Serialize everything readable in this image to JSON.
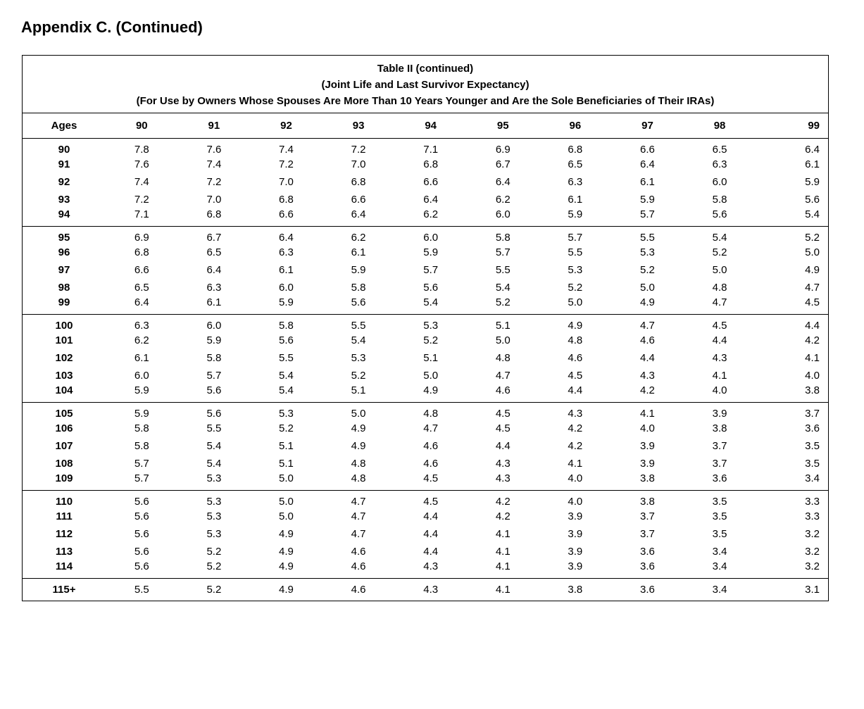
{
  "page_title": "Appendix C. (Continued)",
  "table": {
    "title_lines": [
      "Table II (continued)",
      "(Joint Life and Last Survivor Expectancy)",
      "(For Use by Owners Whose Spouses Are More Than 10 Years Younger and Are the Sole Beneficiaries of Their IRAs)"
    ],
    "columns": [
      "Ages",
      "90",
      "91",
      "92",
      "93",
      "94",
      "95",
      "96",
      "97",
      "98",
      "99"
    ],
    "row_groups": [
      {
        "rows": [
          {
            "age": "90",
            "values": [
              "7.8",
              "7.6",
              "7.4",
              "7.2",
              "7.1",
              "6.9",
              "6.8",
              "6.6",
              "6.5",
              "6.4"
            ]
          },
          {
            "age": "91",
            "values": [
              "7.6",
              "7.4",
              "7.2",
              "7.0",
              "6.8",
              "6.7",
              "6.5",
              "6.4",
              "6.3",
              "6.1"
            ]
          },
          {
            "age": "92",
            "values": [
              "7.4",
              "7.2",
              "7.0",
              "6.8",
              "6.6",
              "6.4",
              "6.3",
              "6.1",
              "6.0",
              "5.9"
            ]
          },
          {
            "age": "93",
            "values": [
              "7.2",
              "7.0",
              "6.8",
              "6.6",
              "6.4",
              "6.2",
              "6.1",
              "5.9",
              "5.8",
              "5.6"
            ]
          },
          {
            "age": "94",
            "values": [
              "7.1",
              "6.8",
              "6.6",
              "6.4",
              "6.2",
              "6.0",
              "5.9",
              "5.7",
              "5.6",
              "5.4"
            ]
          }
        ]
      },
      {
        "rows": [
          {
            "age": "95",
            "values": [
              "6.9",
              "6.7",
              "6.4",
              "6.2",
              "6.0",
              "5.8",
              "5.7",
              "5.5",
              "5.4",
              "5.2"
            ]
          },
          {
            "age": "96",
            "values": [
              "6.8",
              "6.5",
              "6.3",
              "6.1",
              "5.9",
              "5.7",
              "5.5",
              "5.3",
              "5.2",
              "5.0"
            ]
          },
          {
            "age": "97",
            "values": [
              "6.6",
              "6.4",
              "6.1",
              "5.9",
              "5.7",
              "5.5",
              "5.3",
              "5.2",
              "5.0",
              "4.9"
            ]
          },
          {
            "age": "98",
            "values": [
              "6.5",
              "6.3",
              "6.0",
              "5.8",
              "5.6",
              "5.4",
              "5.2",
              "5.0",
              "4.8",
              "4.7"
            ]
          },
          {
            "age": "99",
            "values": [
              "6.4",
              "6.1",
              "5.9",
              "5.6",
              "5.4",
              "5.2",
              "5.0",
              "4.9",
              "4.7",
              "4.5"
            ]
          }
        ]
      },
      {
        "rows": [
          {
            "age": "100",
            "values": [
              "6.3",
              "6.0",
              "5.8",
              "5.5",
              "5.3",
              "5.1",
              "4.9",
              "4.7",
              "4.5",
              "4.4"
            ]
          },
          {
            "age": "101",
            "values": [
              "6.2",
              "5.9",
              "5.6",
              "5.4",
              "5.2",
              "5.0",
              "4.8",
              "4.6",
              "4.4",
              "4.2"
            ]
          },
          {
            "age": "102",
            "values": [
              "6.1",
              "5.8",
              "5.5",
              "5.3",
              "5.1",
              "4.8",
              "4.6",
              "4.4",
              "4.3",
              "4.1"
            ]
          },
          {
            "age": "103",
            "values": [
              "6.0",
              "5.7",
              "5.4",
              "5.2",
              "5.0",
              "4.7",
              "4.5",
              "4.3",
              "4.1",
              "4.0"
            ]
          },
          {
            "age": "104",
            "values": [
              "5.9",
              "5.6",
              "5.4",
              "5.1",
              "4.9",
              "4.6",
              "4.4",
              "4.2",
              "4.0",
              "3.8"
            ]
          }
        ]
      },
      {
        "rows": [
          {
            "age": "105",
            "values": [
              "5.9",
              "5.6",
              "5.3",
              "5.0",
              "4.8",
              "4.5",
              "4.3",
              "4.1",
              "3.9",
              "3.7"
            ]
          },
          {
            "age": "106",
            "values": [
              "5.8",
              "5.5",
              "5.2",
              "4.9",
              "4.7",
              "4.5",
              "4.2",
              "4.0",
              "3.8",
              "3.6"
            ]
          },
          {
            "age": "107",
            "values": [
              "5.8",
              "5.4",
              "5.1",
              "4.9",
              "4.6",
              "4.4",
              "4.2",
              "3.9",
              "3.7",
              "3.5"
            ]
          },
          {
            "age": "108",
            "values": [
              "5.7",
              "5.4",
              "5.1",
              "4.8",
              "4.6",
              "4.3",
              "4.1",
              "3.9",
              "3.7",
              "3.5"
            ]
          },
          {
            "age": "109",
            "values": [
              "5.7",
              "5.3",
              "5.0",
              "4.8",
              "4.5",
              "4.3",
              "4.0",
              "3.8",
              "3.6",
              "3.4"
            ]
          }
        ]
      },
      {
        "rows": [
          {
            "age": "110",
            "values": [
              "5.6",
              "5.3",
              "5.0",
              "4.7",
              "4.5",
              "4.2",
              "4.0",
              "3.8",
              "3.5",
              "3.3"
            ]
          },
          {
            "age": "111",
            "values": [
              "5.6",
              "5.3",
              "5.0",
              "4.7",
              "4.4",
              "4.2",
              "3.9",
              "3.7",
              "3.5",
              "3.3"
            ]
          },
          {
            "age": "112",
            "values": [
              "5.6",
              "5.3",
              "4.9",
              "4.7",
              "4.4",
              "4.1",
              "3.9",
              "3.7",
              "3.5",
              "3.2"
            ]
          },
          {
            "age": "113",
            "values": [
              "5.6",
              "5.2",
              "4.9",
              "4.6",
              "4.4",
              "4.1",
              "3.9",
              "3.6",
              "3.4",
              "3.2"
            ]
          },
          {
            "age": "114",
            "values": [
              "5.6",
              "5.2",
              "4.9",
              "4.6",
              "4.3",
              "4.1",
              "3.9",
              "3.6",
              "3.4",
              "3.2"
            ]
          }
        ]
      },
      {
        "rows": [
          {
            "age": "115+",
            "values": [
              "5.5",
              "5.2",
              "4.9",
              "4.6",
              "4.3",
              "4.1",
              "3.8",
              "3.6",
              "3.4",
              "3.1"
            ]
          }
        ]
      }
    ]
  }
}
